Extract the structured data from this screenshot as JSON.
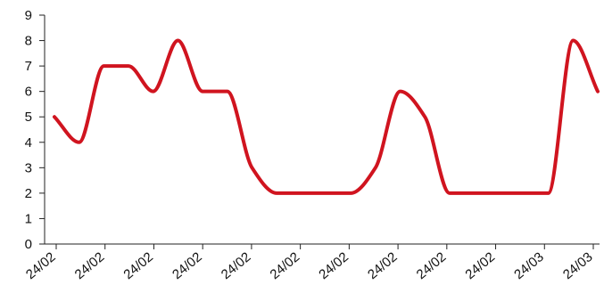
{
  "chart_data": {
    "type": "line",
    "title": "",
    "xlabel": "",
    "ylabel": "",
    "ylim": [
      0,
      9
    ],
    "yticks": [
      0,
      1,
      2,
      3,
      4,
      5,
      6,
      7,
      8,
      9
    ],
    "grid": false,
    "legend": "none",
    "x_tick_labels": [
      "24/02",
      "24/02",
      "24/02",
      "24/02",
      "24/02",
      "24/02",
      "24/02",
      "24/02",
      "24/02",
      "24/02",
      "24/03",
      "24/03"
    ],
    "series": [
      {
        "color": "#d0141f",
        "values": [
          5,
          4,
          7,
          7,
          6,
          8,
          6,
          6,
          3,
          2,
          2,
          2,
          2,
          3,
          6,
          5,
          2,
          2,
          2,
          2,
          2,
          8,
          6
        ]
      }
    ]
  }
}
